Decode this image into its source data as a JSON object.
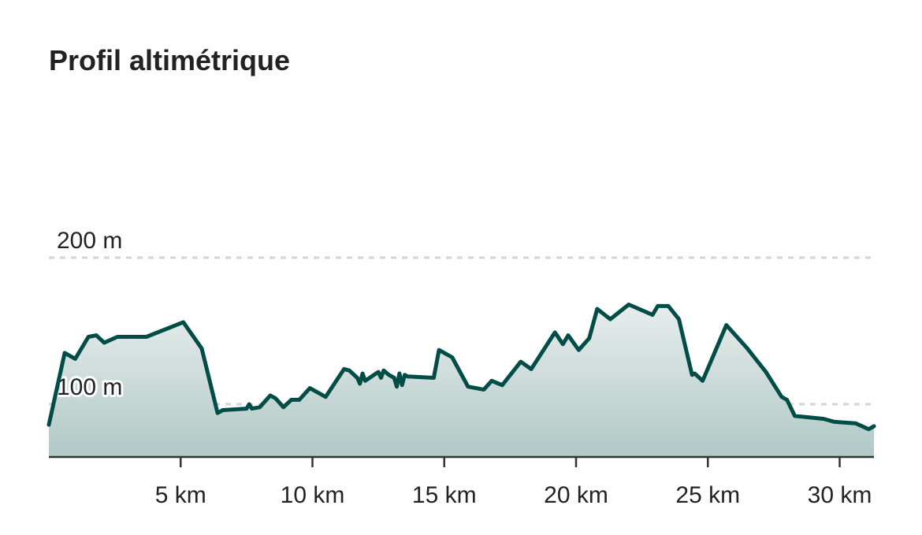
{
  "title": "Profil altimétrique",
  "chart_data": {
    "type": "area",
    "xlabel": "",
    "ylabel": "",
    "xlim": [
      0,
      31.3
    ],
    "ylim": [
      64,
      200
    ],
    "grid": true,
    "colors": {
      "line": "#004c46",
      "fill_top": "#e8eded",
      "fill_bottom": "#b0c9c6"
    },
    "x_ticks": [
      {
        "value": 5,
        "label": "5 km"
      },
      {
        "value": 10,
        "label": "10 km"
      },
      {
        "value": 15,
        "label": "15 km"
      },
      {
        "value": 20,
        "label": "20 km"
      },
      {
        "value": 25,
        "label": "25 km"
      },
      {
        "value": 30,
        "label": "30 km"
      }
    ],
    "y_ticks": [
      {
        "value": 100,
        "label": "100 m"
      },
      {
        "value": 200,
        "label": "200 m"
      }
    ],
    "series": [
      {
        "x": [
          0,
          0.6,
          1.0,
          1.5,
          1.8,
          2.1,
          2.6,
          3.7,
          5.1,
          5.8,
          6.4,
          6.6,
          7.5,
          7.6,
          7.7,
          8.0,
          8.4,
          8.6,
          8.9,
          9.2,
          9.5,
          9.9,
          10.2,
          10.5,
          11.2,
          11.4,
          11.7,
          11.8,
          11.9,
          12.0,
          12.5,
          12.6,
          12.7,
          12.9,
          13.1,
          13.2,
          13.3,
          13.4,
          13.5,
          13.6,
          14.6,
          14.8,
          15.0,
          15.3,
          15.9,
          16.5,
          16.8,
          17.2,
          17.9,
          18.3,
          19.2,
          19.5,
          19.7,
          20.1,
          20.5,
          20.8,
          21.3,
          22.0,
          22.9,
          23.1,
          23.3,
          23.5,
          23.9,
          24.4,
          24.5,
          24.8,
          25.7,
          26.5,
          27.2,
          27.8,
          28.0,
          28.3,
          29.4,
          29.8,
          30.6,
          31.1,
          31.3
        ],
        "y": [
          86,
          135,
          131,
          146,
          147,
          142,
          146,
          146,
          156,
          138,
          94,
          96,
          97,
          100,
          97,
          98,
          106,
          104,
          98,
          103,
          103,
          111,
          108,
          105,
          124,
          123,
          118,
          114,
          121,
          116,
          122,
          118,
          123,
          120,
          118,
          112,
          121,
          113,
          120,
          119,
          118,
          137,
          135,
          132,
          112,
          110,
          116,
          113,
          129,
          124,
          149,
          141,
          147,
          137,
          145,
          165,
          158,
          168,
          161,
          167,
          167,
          167,
          158,
          120,
          121,
          116,
          154,
          138,
          122,
          105,
          103,
          92,
          90,
          88,
          87,
          83,
          85
        ]
      }
    ]
  }
}
